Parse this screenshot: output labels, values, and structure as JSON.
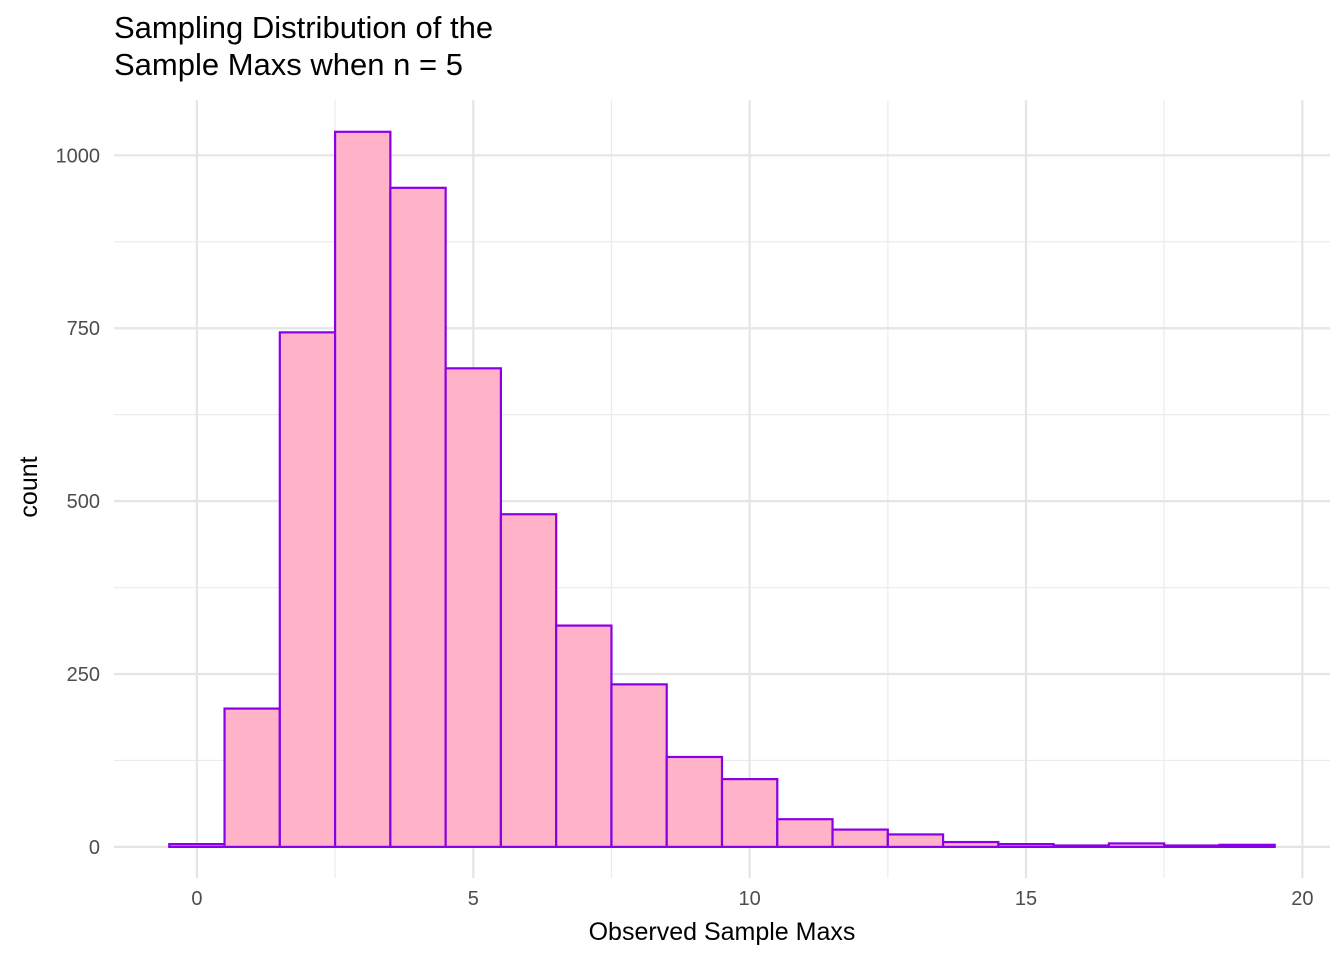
{
  "chart_data": {
    "type": "bar",
    "title": "Sampling Distribution of the",
    "title_line2": "Sample Maxs when n = 5",
    "xlabel": "Observed Sample Maxs",
    "ylabel": "count",
    "xlim": [
      -1.5,
      20.5
    ],
    "ylim": [
      -45,
      1080
    ],
    "x_ticks": [
      0,
      5,
      10,
      15,
      20
    ],
    "x_tick_labels": [
      "0",
      "5",
      "10",
      "15",
      "20"
    ],
    "y_ticks": [
      0,
      250,
      500,
      750,
      1000
    ],
    "y_tick_labels": [
      "0",
      "250",
      "500",
      "750",
      "1000"
    ],
    "grid": true,
    "bin_width": 1,
    "bin_centers": [
      0,
      1,
      2,
      3,
      4,
      5,
      6,
      7,
      8,
      9,
      10,
      11,
      12,
      13,
      14,
      15,
      16,
      17,
      18,
      19
    ],
    "values": [
      4,
      200,
      744,
      1034,
      953,
      692,
      481,
      320,
      235,
      130,
      98,
      40,
      25,
      18,
      7,
      4,
      2,
      5,
      2,
      3
    ],
    "fill_color": "#ffb2c8",
    "edge_color": "#8a00e6"
  }
}
